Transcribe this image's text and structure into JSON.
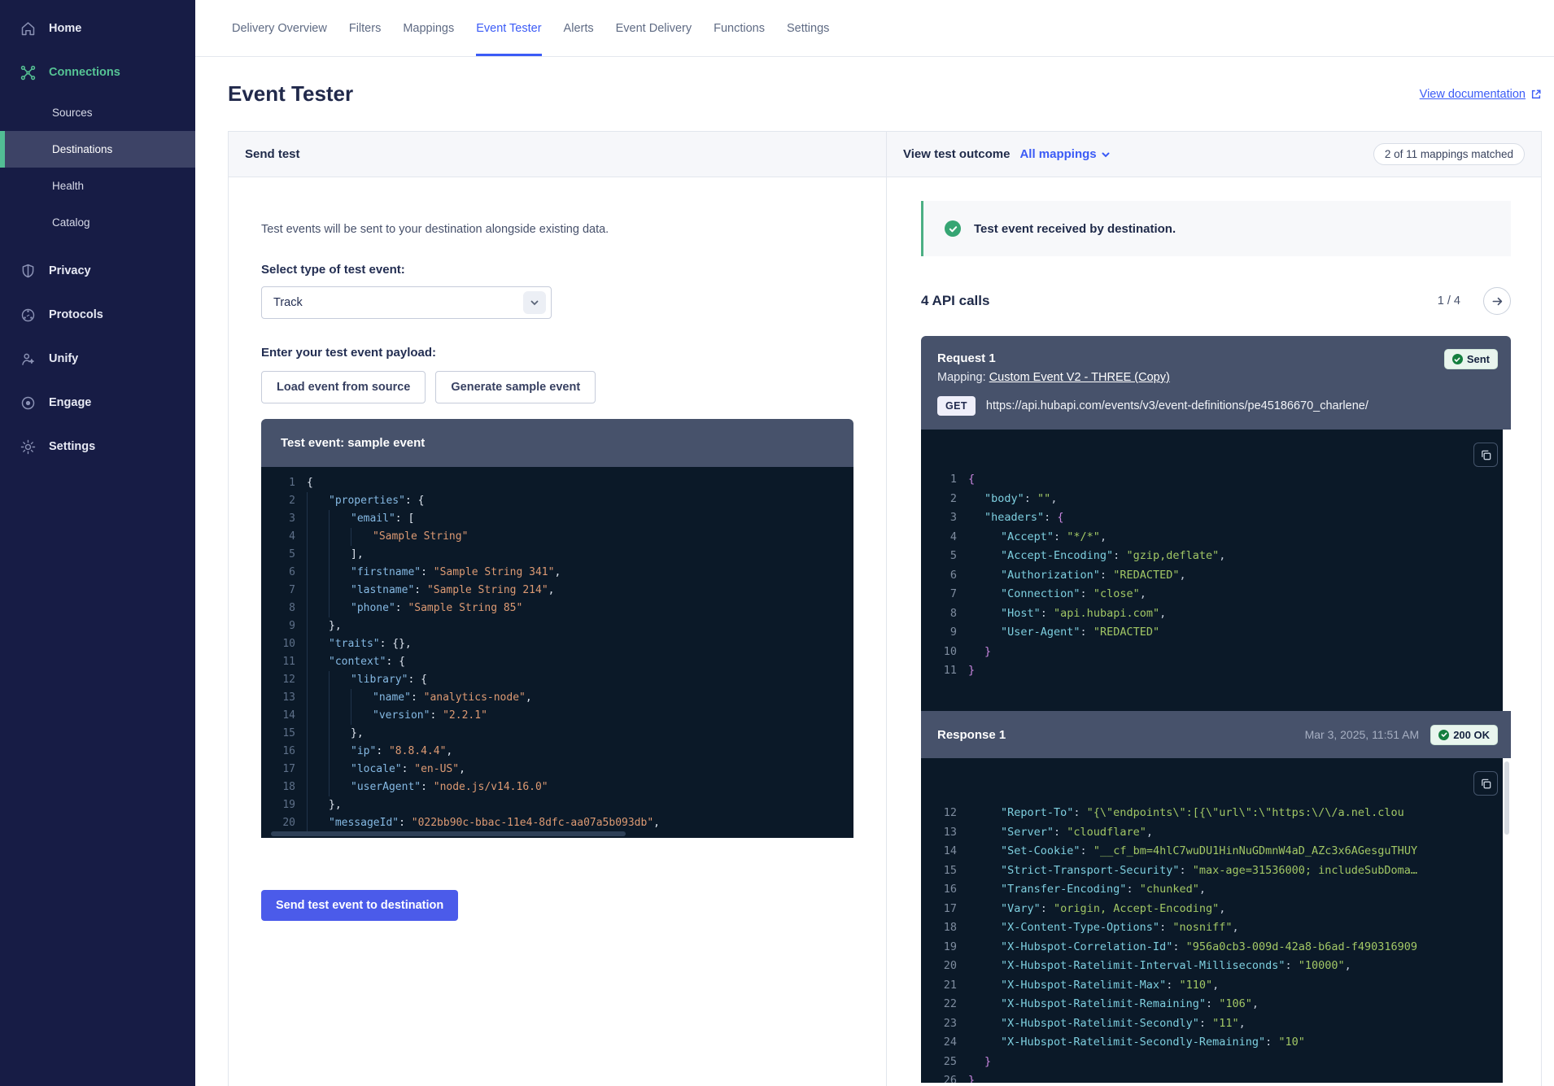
{
  "sidebar": {
    "items": [
      {
        "label": "Home",
        "icon": "home-icon",
        "type": "main"
      },
      {
        "label": "Connections",
        "icon": "connections-icon",
        "type": "main",
        "accent": true
      },
      {
        "label": "Sources",
        "type": "sub"
      },
      {
        "label": "Destinations",
        "type": "sub",
        "active": true
      },
      {
        "label": "Health",
        "type": "sub"
      },
      {
        "label": "Catalog",
        "type": "sub"
      },
      {
        "label": "Privacy",
        "icon": "shield-icon",
        "type": "main",
        "gap_before": true
      },
      {
        "label": "Protocols",
        "icon": "protocols-icon",
        "type": "main"
      },
      {
        "label": "Unify",
        "icon": "unify-icon",
        "type": "main"
      },
      {
        "label": "Engage",
        "icon": "engage-icon",
        "type": "main"
      },
      {
        "label": "Settings",
        "icon": "gear-icon",
        "type": "main"
      }
    ]
  },
  "tabs": {
    "items": [
      {
        "label": "Delivery Overview"
      },
      {
        "label": "Filters"
      },
      {
        "label": "Mappings"
      },
      {
        "label": "Event Tester",
        "active": true
      },
      {
        "label": "Alerts"
      },
      {
        "label": "Event Delivery"
      },
      {
        "label": "Functions"
      },
      {
        "label": "Settings"
      }
    ]
  },
  "page": {
    "title": "Event Tester",
    "doc_link": "View documentation"
  },
  "send_test": {
    "header": "Send test",
    "description": "Test events will be sent to your destination alongside existing data.",
    "type_label": "Select type of test event:",
    "type_value": "Track",
    "payload_label": "Enter your test event payload:",
    "load_button": "Load event from source",
    "generate_button": "Generate sample event",
    "editor_title": "Test event: sample event",
    "send_button": "Send test event to destination"
  },
  "editor_code": {
    "lines": [
      {
        "n": 1,
        "i": 0,
        "p": [
          [
            "pun",
            "{"
          ]
        ]
      },
      {
        "n": 2,
        "i": 1,
        "p": [
          [
            "key",
            "\"properties\""
          ],
          [
            "pun",
            ": {"
          ]
        ]
      },
      {
        "n": 3,
        "i": 2,
        "p": [
          [
            "key",
            "\"email\""
          ],
          [
            "pun",
            ": ["
          ]
        ]
      },
      {
        "n": 4,
        "i": 3,
        "p": [
          [
            "str",
            "\"Sample String\""
          ]
        ]
      },
      {
        "n": 5,
        "i": 2,
        "p": [
          [
            "pun",
            "],"
          ]
        ]
      },
      {
        "n": 6,
        "i": 2,
        "p": [
          [
            "key",
            "\"firstname\""
          ],
          [
            "pun",
            ": "
          ],
          [
            "str",
            "\"Sample String 341\""
          ],
          [
            "pun",
            ","
          ]
        ]
      },
      {
        "n": 7,
        "i": 2,
        "p": [
          [
            "key",
            "\"lastname\""
          ],
          [
            "pun",
            ": "
          ],
          [
            "str",
            "\"Sample String 214\""
          ],
          [
            "pun",
            ","
          ]
        ]
      },
      {
        "n": 8,
        "i": 2,
        "p": [
          [
            "key",
            "\"phone\""
          ],
          [
            "pun",
            ": "
          ],
          [
            "str",
            "\"Sample String 85\""
          ]
        ]
      },
      {
        "n": 9,
        "i": 1,
        "p": [
          [
            "pun",
            "},"
          ]
        ]
      },
      {
        "n": 10,
        "i": 1,
        "p": [
          [
            "key",
            "\"traits\""
          ],
          [
            "pun",
            ": {},"
          ]
        ]
      },
      {
        "n": 11,
        "i": 1,
        "p": [
          [
            "key",
            "\"context\""
          ],
          [
            "pun",
            ": {"
          ]
        ]
      },
      {
        "n": 12,
        "i": 2,
        "p": [
          [
            "key",
            "\"library\""
          ],
          [
            "pun",
            ": {"
          ]
        ]
      },
      {
        "n": 13,
        "i": 3,
        "p": [
          [
            "key",
            "\"name\""
          ],
          [
            "pun",
            ": "
          ],
          [
            "str",
            "\"analytics-node\""
          ],
          [
            "pun",
            ","
          ]
        ]
      },
      {
        "n": 14,
        "i": 3,
        "p": [
          [
            "key",
            "\"version\""
          ],
          [
            "pun",
            ": "
          ],
          [
            "str",
            "\"2.2.1\""
          ]
        ]
      },
      {
        "n": 15,
        "i": 2,
        "p": [
          [
            "pun",
            "},"
          ]
        ]
      },
      {
        "n": 16,
        "i": 2,
        "p": [
          [
            "key",
            "\"ip\""
          ],
          [
            "pun",
            ": "
          ],
          [
            "str",
            "\"8.8.4.4\""
          ],
          [
            "pun",
            ","
          ]
        ]
      },
      {
        "n": 17,
        "i": 2,
        "p": [
          [
            "key",
            "\"locale\""
          ],
          [
            "pun",
            ": "
          ],
          [
            "str",
            "\"en-US\""
          ],
          [
            "pun",
            ","
          ]
        ]
      },
      {
        "n": 18,
        "i": 2,
        "p": [
          [
            "key",
            "\"userAgent\""
          ],
          [
            "pun",
            ": "
          ],
          [
            "str",
            "\"node.js/v14.16.0\""
          ]
        ]
      },
      {
        "n": 19,
        "i": 1,
        "p": [
          [
            "pun",
            "},"
          ]
        ]
      },
      {
        "n": 20,
        "i": 1,
        "p": [
          [
            "key",
            "\"messageId\""
          ],
          [
            "pun",
            ": "
          ],
          [
            "str",
            "\"022bb90c-bbac-11e4-8dfc-aa07a5b093db\""
          ],
          [
            "pun",
            ","
          ]
        ]
      }
    ]
  },
  "outcome": {
    "header": "View test outcome",
    "filter_label": "All mappings",
    "matched_badge": "2 of 11 mappings matched",
    "success_message": "Test event received by destination.",
    "api_calls_label": "4 API calls",
    "pager": "1 / 4",
    "request": {
      "title": "Request 1",
      "status_badge": "Sent",
      "mapping_label": "Mapping: ",
      "mapping_link": "Custom Event V2 - THREE (Copy)",
      "method": "GET",
      "url": "https://api.hubapi.com/events/v3/event-definitions/pe45186670_charlene/"
    },
    "request_code": {
      "lines": [
        {
          "n": 1,
          "i": 0,
          "p": [
            [
              "brc",
              "{"
            ]
          ]
        },
        {
          "n": 2,
          "i": 1,
          "p": [
            [
              "key",
              "\"body\""
            ],
            [
              "pun",
              ": "
            ],
            [
              "str",
              "\"\""
            ],
            [
              "pun",
              ","
            ]
          ]
        },
        {
          "n": 3,
          "i": 1,
          "p": [
            [
              "key",
              "\"headers\""
            ],
            [
              "pun",
              ": "
            ],
            [
              "brc",
              "{"
            ]
          ]
        },
        {
          "n": 4,
          "i": 2,
          "p": [
            [
              "key",
              "\"Accept\""
            ],
            [
              "pun",
              ": "
            ],
            [
              "str",
              "\"*/*\""
            ],
            [
              "pun",
              ","
            ]
          ]
        },
        {
          "n": 5,
          "i": 2,
          "p": [
            [
              "key",
              "\"Accept-Encoding\""
            ],
            [
              "pun",
              ": "
            ],
            [
              "str",
              "\"gzip,deflate\""
            ],
            [
              "pun",
              ","
            ]
          ]
        },
        {
          "n": 6,
          "i": 2,
          "p": [
            [
              "key",
              "\"Authorization\""
            ],
            [
              "pun",
              ": "
            ],
            [
              "str",
              "\"REDACTED\""
            ],
            [
              "pun",
              ","
            ]
          ]
        },
        {
          "n": 7,
          "i": 2,
          "p": [
            [
              "key",
              "\"Connection\""
            ],
            [
              "pun",
              ": "
            ],
            [
              "str",
              "\"close\""
            ],
            [
              "pun",
              ","
            ]
          ]
        },
        {
          "n": 8,
          "i": 2,
          "p": [
            [
              "key",
              "\"Host\""
            ],
            [
              "pun",
              ": "
            ],
            [
              "str",
              "\"api.hubapi.com\""
            ],
            [
              "pun",
              ","
            ]
          ]
        },
        {
          "n": 9,
          "i": 2,
          "p": [
            [
              "key",
              "\"User-Agent\""
            ],
            [
              "pun",
              ": "
            ],
            [
              "str",
              "\"REDACTED\""
            ]
          ]
        },
        {
          "n": 10,
          "i": 1,
          "p": [
            [
              "brc",
              "}"
            ]
          ]
        },
        {
          "n": 11,
          "i": 0,
          "p": [
            [
              "brc",
              "}"
            ]
          ]
        }
      ]
    },
    "response": {
      "title": "Response 1",
      "timestamp": "Mar 3, 2025, 11:51 AM",
      "status_badge": "200 OK"
    },
    "response_code": {
      "lines": [
        {
          "n": 12,
          "i": 2,
          "p": [
            [
              "key",
              "\"Report-To\""
            ],
            [
              "pun",
              ": "
            ],
            [
              "str",
              "\"{\\\"endpoints\\\":[{\\\"url\\\":\\\"https:\\/\\/a.nel.clou"
            ]
          ]
        },
        {
          "n": 13,
          "i": 2,
          "p": [
            [
              "key",
              "\"Server\""
            ],
            [
              "pun",
              ": "
            ],
            [
              "str",
              "\"cloudflare\""
            ],
            [
              "pun",
              ","
            ]
          ]
        },
        {
          "n": 14,
          "i": 2,
          "p": [
            [
              "key",
              "\"Set-Cookie\""
            ],
            [
              "pun",
              ": "
            ],
            [
              "str",
              "\"__cf_bm=4hlC7wuDU1HinNuGDmnW4aD_AZc3x6AGesguTHUY"
            ]
          ]
        },
        {
          "n": 15,
          "i": 2,
          "p": [
            [
              "key",
              "\"Strict-Transport-Security\""
            ],
            [
              "pun",
              ": "
            ],
            [
              "str",
              "\"max-age=31536000; includeSubDoma…"
            ]
          ]
        },
        {
          "n": 16,
          "i": 2,
          "p": [
            [
              "key",
              "\"Transfer-Encoding\""
            ],
            [
              "pun",
              ": "
            ],
            [
              "str",
              "\"chunked\""
            ],
            [
              "pun",
              ","
            ]
          ]
        },
        {
          "n": 17,
          "i": 2,
          "p": [
            [
              "key",
              "\"Vary\""
            ],
            [
              "pun",
              ": "
            ],
            [
              "str",
              "\"origin, Accept-Encoding\""
            ],
            [
              "pun",
              ","
            ]
          ]
        },
        {
          "n": 18,
          "i": 2,
          "p": [
            [
              "key",
              "\"X-Content-Type-Options\""
            ],
            [
              "pun",
              ": "
            ],
            [
              "str",
              "\"nosniff\""
            ],
            [
              "pun",
              ","
            ]
          ]
        },
        {
          "n": 19,
          "i": 2,
          "p": [
            [
              "key",
              "\"X-Hubspot-Correlation-Id\""
            ],
            [
              "pun",
              ": "
            ],
            [
              "str",
              "\"956a0cb3-009d-42a8-b6ad-f490316909"
            ]
          ]
        },
        {
          "n": 20,
          "i": 2,
          "p": [
            [
              "key",
              "\"X-Hubspot-Ratelimit-Interval-Milliseconds\""
            ],
            [
              "pun",
              ": "
            ],
            [
              "str",
              "\"10000\""
            ],
            [
              "pun",
              ","
            ]
          ]
        },
        {
          "n": 21,
          "i": 2,
          "p": [
            [
              "key",
              "\"X-Hubspot-Ratelimit-Max\""
            ],
            [
              "pun",
              ": "
            ],
            [
              "str",
              "\"110\""
            ],
            [
              "pun",
              ","
            ]
          ]
        },
        {
          "n": 22,
          "i": 2,
          "p": [
            [
              "key",
              "\"X-Hubspot-Ratelimit-Remaining\""
            ],
            [
              "pun",
              ": "
            ],
            [
              "str",
              "\"106\""
            ],
            [
              "pun",
              ","
            ]
          ]
        },
        {
          "n": 23,
          "i": 2,
          "p": [
            [
              "key",
              "\"X-Hubspot-Ratelimit-Secondly\""
            ],
            [
              "pun",
              ": "
            ],
            [
              "str",
              "\"11\""
            ],
            [
              "pun",
              ","
            ]
          ]
        },
        {
          "n": 24,
          "i": 2,
          "p": [
            [
              "key",
              "\"X-Hubspot-Ratelimit-Secondly-Remaining\""
            ],
            [
              "pun",
              ": "
            ],
            [
              "str",
              "\"10\""
            ]
          ]
        },
        {
          "n": 25,
          "i": 1,
          "p": [
            [
              "brc",
              "}"
            ]
          ]
        },
        {
          "n": 26,
          "i": 0,
          "p": [
            [
              "brc",
              "}"
            ]
          ]
        }
      ]
    }
  },
  "colors": {
    "accent_green": "#52BD94",
    "accent_blue": "#3B5BF6",
    "button_blue": "#4B5BEA",
    "success_green": "#36A573",
    "code_bg": "#0B1928",
    "slate_header": "#47526B",
    "sidebar_bg": "#171C45"
  }
}
